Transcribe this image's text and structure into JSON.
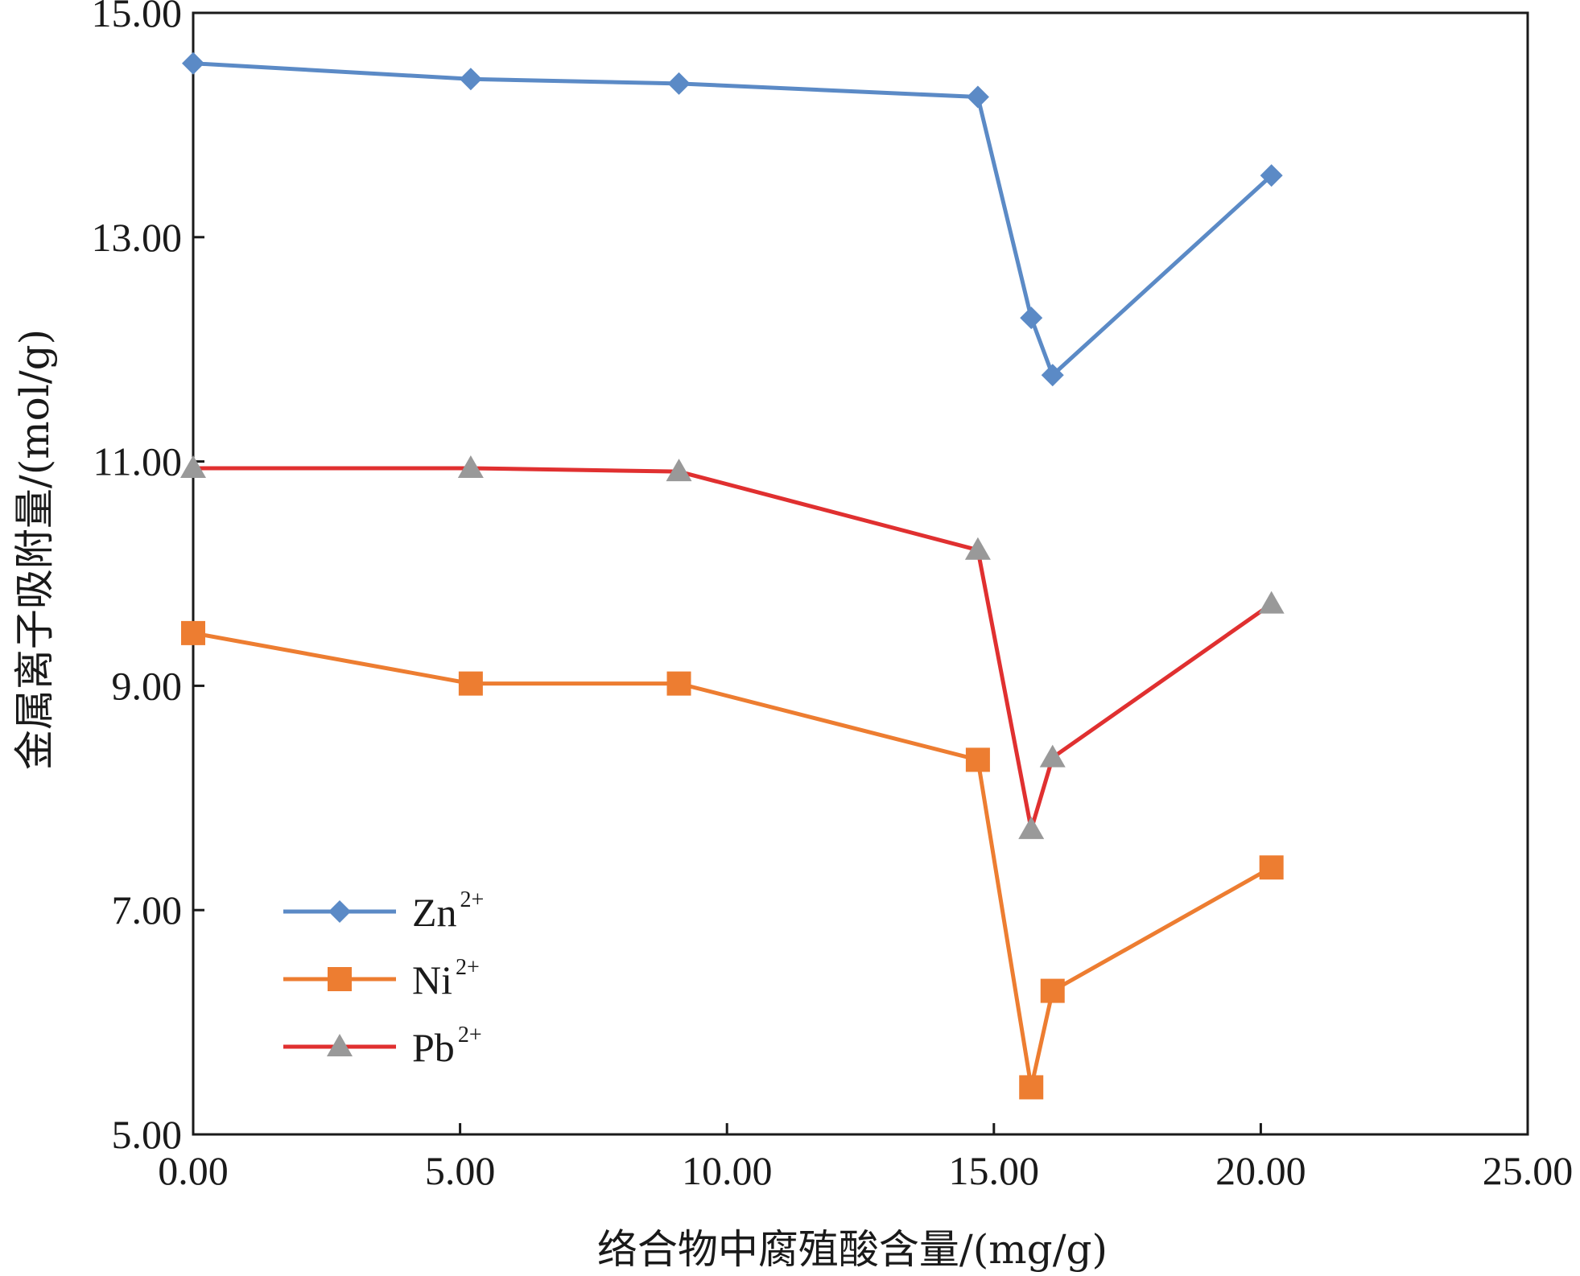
{
  "chart_data": {
    "type": "line",
    "title": "",
    "xlabel": "络合物中腐殖酸含量/(mg/g)",
    "ylabel": "金属离子吸附量/(mol/g)",
    "xlim": [
      0,
      25
    ],
    "ylim": [
      5,
      15
    ],
    "x_ticks": [
      0,
      5,
      10,
      15,
      20,
      25
    ],
    "y_ticks": [
      5,
      7,
      9,
      11,
      13,
      15
    ],
    "x_tick_labels": [
      "0.00",
      "5.00",
      "10.00",
      "15.00",
      "20.00",
      "25.00"
    ],
    "y_tick_labels": [
      "5.00",
      "7.00",
      "9.00",
      "11.00",
      "13.00",
      "15.00"
    ],
    "grid": false,
    "legend_position": "bottom-left",
    "series": [
      {
        "name": "Zn",
        "superscript": "2+",
        "line_color": "#5b8ac6",
        "marker": "diamond",
        "marker_color": "#5b8ac6",
        "x": [
          0,
          5.2,
          9.1,
          14.7,
          15.7,
          16.1,
          20.2
        ],
        "y": [
          14.55,
          14.41,
          14.37,
          14.25,
          12.28,
          11.77,
          13.55
        ]
      },
      {
        "name": "Ni",
        "superscript": "2+",
        "line_color": "#ed7d31",
        "marker": "square",
        "marker_color": "#ed7d31",
        "x": [
          0,
          5.2,
          9.1,
          14.7,
          15.7,
          16.1,
          20.2
        ],
        "y": [
          9.47,
          9.02,
          9.02,
          8.34,
          5.42,
          6.28,
          7.38
        ]
      },
      {
        "name": "Pb",
        "superscript": "2+",
        "line_color": "#e03030",
        "marker": "triangle",
        "marker_color": "#999999",
        "x": [
          0,
          5.2,
          9.1,
          14.7,
          15.7,
          16.1,
          20.2
        ],
        "y": [
          10.94,
          10.94,
          10.91,
          10.21,
          7.72,
          8.36,
          9.73
        ]
      }
    ]
  }
}
